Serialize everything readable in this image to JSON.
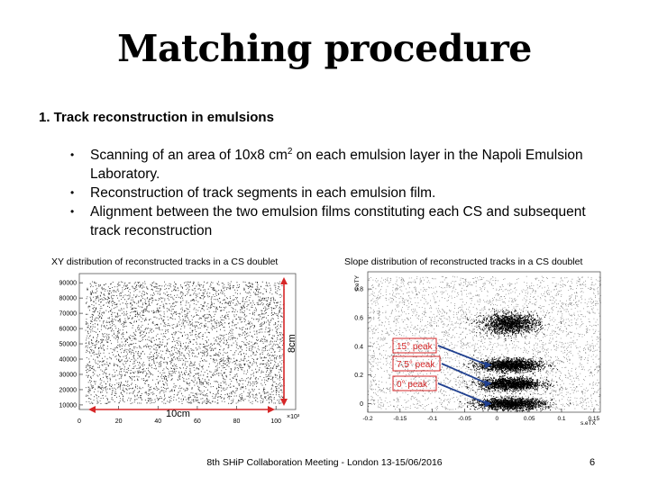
{
  "slide": {
    "title": "Matching procedure",
    "section": "1.   Track reconstruction in emulsions",
    "bullets": [
      {
        "pre": "Scanning of an area of 10x8 cm",
        "sup": "2",
        "post": " on each emulsion layer in the Napoli Emulsion Laboratory."
      },
      {
        "pre": "Reconstruction of track segments in each emulsion film.",
        "sup": "",
        "post": ""
      },
      {
        "pre": "Alignment between the two emulsion films constituting each CS and subsequent track reconstruction",
        "sup": "",
        "post": ""
      }
    ],
    "footer": "8th SHiP Collaboration Meeting - London 13-15/06/2016",
    "page_number": "6"
  },
  "chart_data": [
    {
      "type": "scatter",
      "title": "XY distribution of reconstructed tracks in a CS doublet",
      "x_ticks": [
        "0",
        "20",
        "40",
        "60",
        "80",
        "100"
      ],
      "x_multiplier": "×10³",
      "y_ticks": [
        "10000",
        "20000",
        "30000",
        "40000",
        "50000",
        "60000",
        "70000",
        "80000",
        "90000"
      ],
      "xlim": [
        0,
        110000
      ],
      "ylim": [
        7000,
        96000
      ],
      "fill_region": {
        "x": [
          3000,
          104000
        ],
        "y": [
          11000,
          91000
        ]
      },
      "annotations": {
        "width_label": "10cm",
        "height_label": "8cm"
      },
      "colors": {
        "points": "#000000",
        "dimension_arrows": "#d62728"
      }
    },
    {
      "type": "scatter",
      "title": "Slope distribution of reconstructed tracks in a CS doublet",
      "xlabel": "s.eTX",
      "ylabel": "s.eTY",
      "x_ticks": [
        "-0.2",
        "-0.15",
        "-0.1",
        "-0.05",
        "0",
        "0.05",
        "0.1",
        "0.15"
      ],
      "y_ticks": [
        "0",
        "0.2",
        "0.4",
        "0.6",
        "0.8"
      ],
      "xlim": [
        -0.2,
        0.16
      ],
      "ylim": [
        -0.06,
        0.92
      ],
      "peaks": [
        {
          "label": "15° peak",
          "tx": 0.02,
          "ty": 0.27
        },
        {
          "label": "7.5° peak",
          "tx": 0.02,
          "ty": 0.14
        },
        {
          "label": "0° peak",
          "tx": 0.02,
          "ty": 0.0
        }
      ],
      "colors": {
        "points": "#000000",
        "label_boxes": "#d62728"
      }
    }
  ]
}
